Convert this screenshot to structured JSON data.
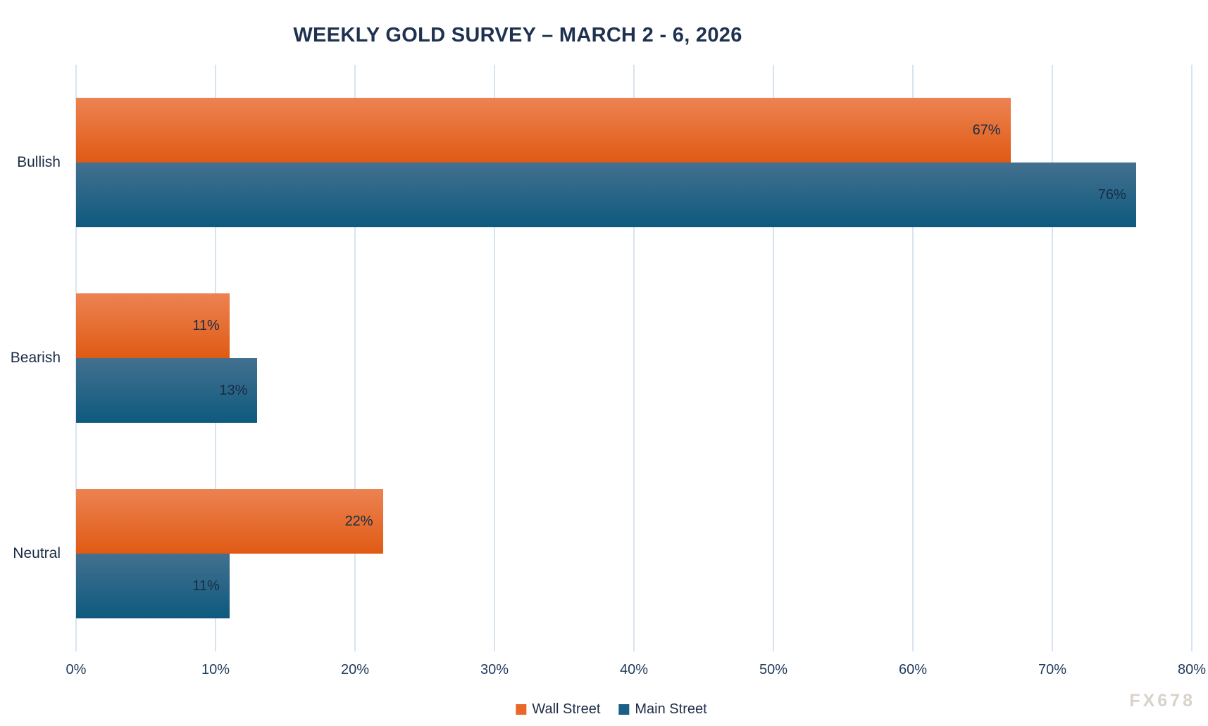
{
  "title": "WEEKLY GOLD SURVEY – MARCH 2 - 6, 2026",
  "watermark": "FX678",
  "colors": {
    "background": "#ffffff",
    "title_text": "#1f3150",
    "category_text": "#1c2c46",
    "tick_text": "#1f3a5c",
    "value_text": "#152c45",
    "gridline": "#d9e3f0",
    "legend_text": "#1c2c46",
    "watermark_text": "#d8d3ca"
  },
  "chart_data": {
    "type": "bar",
    "orientation": "horizontal",
    "title": "WEEKLY GOLD SURVEY – MARCH 2 - 6, 2026",
    "categories": [
      "Bullish",
      "Bearish",
      "Neutral"
    ],
    "series": [
      {
        "name": "Wall Street",
        "values": [
          67,
          11,
          22
        ],
        "color_top": "#ec8352",
        "color_bottom": "#e05a14",
        "legend_color": "#e8682a"
      },
      {
        "name": "Main Street",
        "values": [
          76,
          13,
          11
        ],
        "color_top": "#44708f",
        "color_bottom": "#0d5a7e",
        "legend_color": "#1b5f86"
      }
    ],
    "value_suffix": "%",
    "xlim": [
      0,
      80
    ],
    "x_ticks": [
      "0%",
      "10%",
      "20%",
      "30%",
      "40%",
      "50%",
      "60%",
      "70%",
      "80%"
    ],
    "grid": true,
    "legend_position": "bottom",
    "data_labels": "inside-end"
  }
}
